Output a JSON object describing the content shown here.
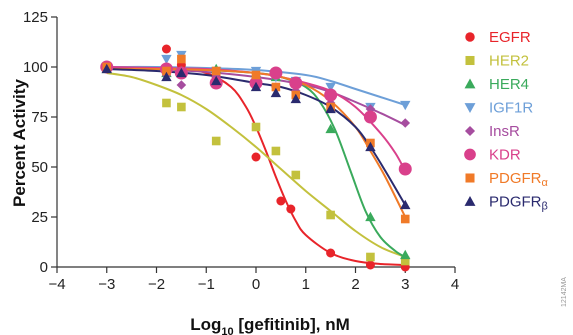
{
  "chart_data": {
    "type": "scatter",
    "title": "",
    "xlabel": "Log10 [gefitinib], nM",
    "xlabel_parts": {
      "prefix": "Log",
      "subscript": "10",
      "suffix": " [gefitinib], nM"
    },
    "ylabel": "Percent Activity",
    "xlim": [
      -4,
      4
    ],
    "ylim": [
      0,
      125
    ],
    "xticks": [
      -4,
      -3,
      -2,
      -1,
      0,
      1,
      2,
      3,
      4
    ],
    "yticks": [
      0,
      25,
      50,
      75,
      100,
      125
    ],
    "grid": false,
    "legend_placement": "right",
    "side_note": "12142MA",
    "series": [
      {
        "name": "EGFR",
        "color": "#e8242a",
        "marker": "circle",
        "x": [
          -3,
          -1.8,
          -1.5,
          -0.8,
          0,
          0.5,
          0.7,
          1.5,
          2.3,
          3
        ],
        "y": [
          100,
          109,
          101,
          95,
          55,
          33,
          29,
          7,
          1,
          0
        ],
        "curve_x": [
          -3,
          -2,
          -1.5,
          -1,
          -0.5,
          -0.2,
          0,
          0.2,
          0.4,
          0.6,
          0.8,
          1,
          1.5,
          2,
          2.5,
          3
        ],
        "curve_y": [
          100,
          99.5,
          99,
          97,
          90,
          80,
          70,
          58,
          45,
          33,
          23,
          16,
          7,
          3,
          1.5,
          1
        ]
      },
      {
        "name": "HER2",
        "color": "#c3c13d",
        "marker": "square",
        "x": [
          -3,
          -1.8,
          -1.5,
          -0.8,
          0,
          0.4,
          0.8,
          1.5,
          2.3,
          3
        ],
        "y": [
          100,
          82,
          80,
          63,
          70,
          58,
          46,
          26,
          5,
          3
        ],
        "curve_x": [
          -3,
          -2.5,
          -2,
          -1.5,
          -1,
          -0.5,
          0,
          0.5,
          1,
          1.5,
          2,
          2.5,
          3
        ],
        "curve_y": [
          97,
          95,
          91,
          86,
          79,
          70,
          60,
          49,
          38,
          28,
          18,
          10,
          5
        ]
      },
      {
        "name": "HER4",
        "color": "#3aaa5c",
        "marker": "triangle",
        "x": [
          -3,
          -1.8,
          -1.5,
          -0.8,
          0,
          0.4,
          0.8,
          1.5,
          2.3,
          3
        ],
        "y": [
          99,
          97,
          98,
          99,
          97,
          95,
          92,
          69,
          25,
          6
        ],
        "curve_x": [
          -3,
          -2,
          -1,
          0,
          0.5,
          1,
          1.3,
          1.6,
          1.9,
          2.2,
          2.5,
          2.8,
          3
        ],
        "curve_y": [
          99,
          99,
          98.5,
          97,
          95,
          90,
          82,
          68,
          48,
          28,
          15,
          8,
          5
        ]
      },
      {
        "name": "IGF1R",
        "color": "#6d9fd8",
        "marker": "triangle-down",
        "x": [
          -3,
          -1.8,
          -1.5,
          -0.8,
          0,
          0.4,
          0.8,
          1.5,
          2.3,
          3
        ],
        "y": [
          100,
          104,
          106,
          98,
          98,
          95,
          93,
          90,
          80,
          81
        ],
        "curve_x": [
          -3,
          -2,
          -1,
          0,
          1,
          1.5,
          2,
          2.5,
          3
        ],
        "curve_y": [
          100,
          100,
          99.5,
          98.5,
          96,
          93,
          89,
          85,
          81
        ]
      },
      {
        "name": "InsR",
        "color": "#a64d9f",
        "marker": "diamond",
        "x": [
          -3,
          -1.8,
          -1.5,
          -0.8,
          0,
          0.4,
          0.8,
          1.5,
          2.3,
          3
        ],
        "y": [
          100,
          96,
          91,
          95,
          92,
          90,
          88,
          82,
          79,
          72
        ],
        "curve_x": [
          -3,
          -2,
          -1,
          0,
          1,
          1.5,
          2,
          2.5,
          3
        ],
        "curve_y": [
          100,
          99,
          97.5,
          95,
          91,
          87.5,
          82.5,
          77,
          71
        ]
      },
      {
        "name": "KDR",
        "color": "#d9408b",
        "marker": "circle-large",
        "x": [
          -3,
          -1.8,
          -1.5,
          -0.8,
          0,
          0.4,
          0.8,
          1.5,
          2.3,
          3
        ],
        "y": [
          100,
          99,
          97,
          92,
          92,
          97,
          92,
          86,
          75,
          49
        ],
        "curve_x": [
          -3,
          -2,
          -1,
          0,
          0.5,
          1,
          1.5,
          2,
          2.5,
          2.8,
          3
        ],
        "curve_y": [
          100,
          99.5,
          99,
          97,
          95,
          92,
          88,
          80,
          67,
          57,
          48
        ]
      },
      {
        "name": "PDGFRα",
        "label_base": "PDGFR",
        "label_sub": "α",
        "color": "#f07a28",
        "marker": "square",
        "x": [
          -3,
          -1.8,
          -1.5,
          -0.8,
          0,
          0.4,
          0.8,
          1.5,
          2.3,
          3
        ],
        "y": [
          100,
          98,
          104,
          98,
          96,
          90,
          86,
          80,
          62,
          24
        ],
        "curve_x": [
          -3,
          -2,
          -1,
          0,
          0.5,
          1,
          1.5,
          2,
          2.3,
          2.6,
          3
        ],
        "curve_y": [
          99,
          99,
          98.5,
          97,
          95,
          91,
          83,
          70,
          58,
          45,
          25
        ]
      },
      {
        "name": "PDGFRβ",
        "label_base": "PDGFR",
        "label_sub": "β",
        "color": "#2a2a6e",
        "marker": "triangle",
        "x": [
          -3,
          -1.8,
          -1.5,
          -0.8,
          0,
          0.4,
          0.8,
          1.5,
          2.3,
          3
        ],
        "y": [
          99,
          95,
          97,
          93,
          90,
          87,
          84,
          79,
          60,
          31
        ],
        "curve_x": [
          -3,
          -2,
          -1,
          0,
          0.5,
          1,
          1.5,
          2,
          2.3,
          2.6,
          3
        ],
        "curve_y": [
          99,
          98,
          96,
          92,
          90,
          86,
          80,
          70,
          60,
          48,
          31
        ]
      }
    ]
  }
}
